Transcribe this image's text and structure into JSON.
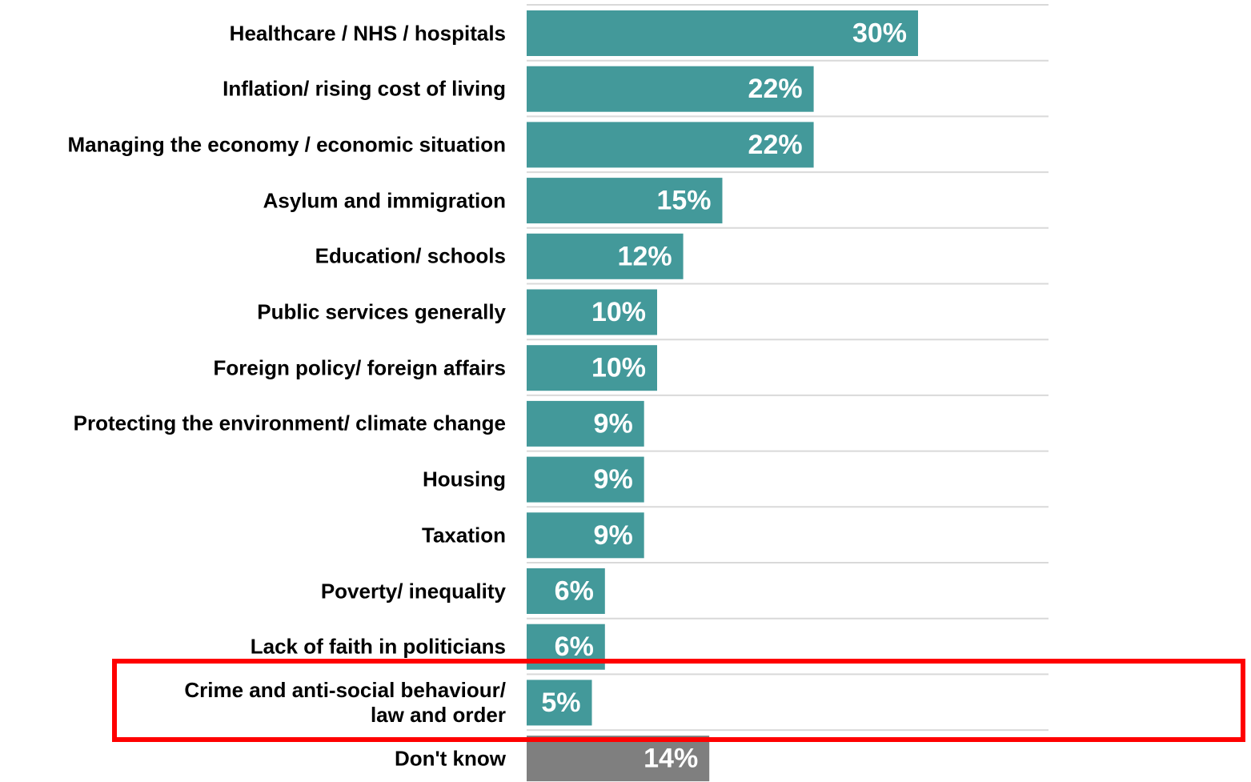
{
  "chart_data": {
    "type": "bar",
    "orientation": "horizontal",
    "categories": [
      "Healthcare /  NHS /  hospitals",
      "Inflation/ rising cost of living",
      "Managing the economy / economic situation",
      "Asylum and immigration",
      "Education/ schools",
      "Public services generally",
      "Foreign policy/ foreign affairs",
      "Protecting the environment/ climate change",
      "Housing",
      "Taxation",
      "Poverty/ inequality",
      "Lack of faith in politicians",
      "Crime and anti-social behaviour/\nlaw and order",
      "Don't know"
    ],
    "values": [
      30,
      22,
      22,
      15,
      12,
      10,
      10,
      9,
      9,
      9,
      6,
      6,
      5,
      14
    ],
    "value_labels": [
      "30%",
      "22%",
      "22%",
      "15%",
      "12%",
      "10%",
      "10%",
      "9%",
      "9%",
      "9%",
      "6%",
      "6%",
      "5%",
      "14%"
    ],
    "colors": [
      "#43999a",
      "#43999a",
      "#43999a",
      "#43999a",
      "#43999a",
      "#43999a",
      "#43999a",
      "#43999a",
      "#43999a",
      "#43999a",
      "#43999a",
      "#43999a",
      "#43999a",
      "#7f7f7f"
    ],
    "xlim": [
      0,
      40
    ]
  }
}
